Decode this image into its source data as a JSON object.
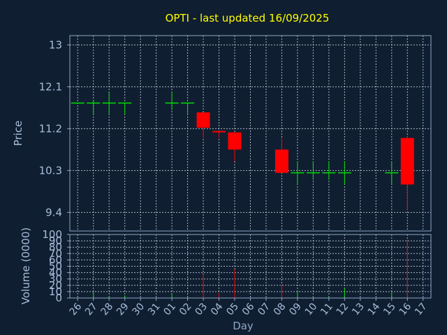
{
  "chart_data": {
    "type": "candlestick",
    "title": "OPTI - last updated 16/09/2025",
    "xlabel": "Day",
    "price_panel": {
      "ylabel": "Price",
      "ylim": [
        9.0,
        13.2
      ],
      "yticks": [
        "13",
        "12.1",
        "11.2",
        "10.3",
        "9.4"
      ],
      "ytick_values": [
        13.0,
        12.1,
        11.2,
        10.3,
        9.4
      ]
    },
    "volume_panel": {
      "ylabel": "Volume (0000)",
      "ylim": [
        0,
        100
      ],
      "yticks": [
        "100",
        "90",
        "80",
        "70",
        "60",
        "50",
        "40",
        "30",
        "20",
        "10",
        "0"
      ],
      "ytick_values": [
        100,
        90,
        80,
        70,
        60,
        50,
        40,
        30,
        20,
        10,
        0
      ]
    },
    "x_labels": [
      "26",
      "27",
      "28",
      "29",
      "30",
      "31",
      "01",
      "02",
      "03",
      "04",
      "05",
      "06",
      "07",
      "08",
      "09",
      "10",
      "11",
      "12",
      "13",
      "14",
      "15",
      "16",
      "17"
    ],
    "candles": [
      {
        "x": "26",
        "open": 11.75,
        "close": 11.75,
        "high": 11.75,
        "low": 11.75,
        "volume": 0
      },
      {
        "x": "27",
        "open": 11.75,
        "close": 11.75,
        "high": 11.82,
        "low": 11.5,
        "volume": 10
      },
      {
        "x": "28",
        "open": 11.75,
        "close": 11.75,
        "high": 12.0,
        "low": 11.5,
        "volume": 3
      },
      {
        "x": "29",
        "open": 11.75,
        "close": 11.75,
        "high": 11.75,
        "low": 11.5,
        "volume": 4
      },
      {
        "x": "01",
        "open": 11.75,
        "close": 11.75,
        "high": 12.0,
        "low": 11.6,
        "volume": 6
      },
      {
        "x": "02",
        "open": 11.75,
        "close": 11.75,
        "high": 11.75,
        "low": 11.5,
        "volume": 2
      },
      {
        "x": "03",
        "open": 11.55,
        "close": 11.22,
        "high": 11.55,
        "low": 11.0,
        "volume": 37
      },
      {
        "x": "04",
        "open": 11.15,
        "close": 11.12,
        "high": 11.15,
        "low": 11.0,
        "volume": 8
      },
      {
        "x": "05",
        "open": 11.12,
        "close": 10.75,
        "high": 11.12,
        "low": 10.5,
        "volume": 45
      },
      {
        "x": "08",
        "open": 10.75,
        "close": 10.25,
        "high": 11.0,
        "low": 10.25,
        "volume": 22
      },
      {
        "x": "09",
        "open": 10.25,
        "close": 10.25,
        "high": 10.5,
        "low": 10.0,
        "volume": 11
      },
      {
        "x": "10",
        "open": 10.25,
        "close": 10.25,
        "high": 10.5,
        "low": 10.1,
        "volume": 3
      },
      {
        "x": "11",
        "open": 10.25,
        "close": 10.25,
        "high": 10.5,
        "low": 10.1,
        "volume": 2
      },
      {
        "x": "12",
        "open": 10.25,
        "close": 10.25,
        "high": 10.5,
        "low": 10.0,
        "volume": 15
      },
      {
        "x": "15",
        "open": 10.25,
        "close": 10.25,
        "high": 10.5,
        "low": 10.0,
        "volume": 9
      },
      {
        "x": "16",
        "open": 11.0,
        "close": 10.0,
        "high": 11.05,
        "low": 9.45,
        "volume": 92
      }
    ],
    "colors": {
      "background": "#0f1e30",
      "up": "#00e000",
      "down": "#ff0000",
      "title": "#ffff00",
      "axis_text": "#a7bedb",
      "grid": "#c8d2de"
    },
    "grid": true
  }
}
